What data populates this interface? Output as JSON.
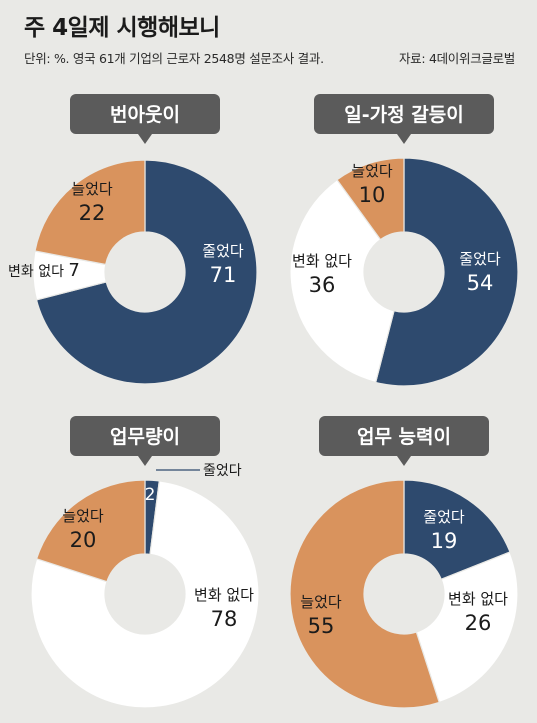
{
  "header": {
    "title": "주 4일제 시행해보니",
    "subtitle": "단위: %. 영국 61개 기업의 근로자 2548명 설문조사 결과.",
    "source": "자료: 4데이위크글로벌"
  },
  "colors": {
    "decreased": "#2e4a6e",
    "increased": "#d9935d",
    "unchanged": "#ffffff",
    "badge": "#5b5b5b",
    "background": "#e9e9e6"
  },
  "chart_data": [
    {
      "type": "pie",
      "title": "번아웃이",
      "slices": [
        {
          "label": "줄었다",
          "value": 71
        },
        {
          "label": "변화 없다",
          "value": 7
        },
        {
          "label": "늘었다",
          "value": 22
        }
      ]
    },
    {
      "type": "pie",
      "title": "일-가정 갈등이",
      "slices": [
        {
          "label": "줄었다",
          "value": 54
        },
        {
          "label": "변화 없다",
          "value": 36
        },
        {
          "label": "늘었다",
          "value": 10
        }
      ]
    },
    {
      "type": "pie",
      "title": "업무량이",
      "slices": [
        {
          "label": "줄었다",
          "value": 2
        },
        {
          "label": "변화 없다",
          "value": 78
        },
        {
          "label": "늘었다",
          "value": 20
        }
      ]
    },
    {
      "type": "pie",
      "title": "업무 능력이",
      "slices": [
        {
          "label": "줄었다",
          "value": 19
        },
        {
          "label": "변화 없다",
          "value": 26
        },
        {
          "label": "늘었다",
          "value": 55
        }
      ]
    }
  ]
}
